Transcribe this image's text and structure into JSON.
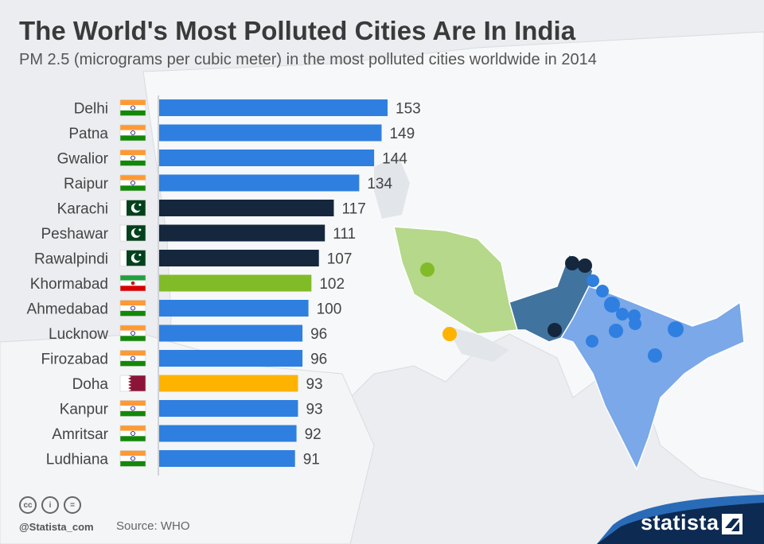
{
  "title": "The World's Most Polluted Cities Are In India",
  "subtitle": "PM 2.5 (micrograms per cubic meter) in the most polluted cities worldwide in 2014",
  "source": "Source: WHO",
  "handle": "@Statista_com",
  "brand": "statista",
  "license_icons": [
    "cc-icon",
    "attribution-icon",
    "no-derivatives-icon"
  ],
  "license_icon_glyphs": [
    "cc",
    "i",
    "="
  ],
  "colors": {
    "india": "#2f7fe0",
    "pakistan": "#14273d",
    "iran": "#82bb28",
    "qatar": "#fdb300",
    "map_india": "#7aa8e8",
    "map_pakistan": "#41739f",
    "map_iran": "#b5d88a",
    "brand_dark": "#0c2a52",
    "brand_blue": "#2a6bb8"
  },
  "chart_data": {
    "type": "bar",
    "orientation": "horizontal",
    "categories": [
      "Delhi",
      "Patna",
      "Gwalior",
      "Raipur",
      "Karachi",
      "Peshawar",
      "Rawalpindi",
      "Khormabad",
      "Ahmedabad",
      "Lucknow",
      "Firozabad",
      "Doha",
      "Kanpur",
      "Amritsar",
      "Ludhiana"
    ],
    "values": [
      153,
      149,
      144,
      134,
      117,
      111,
      107,
      102,
      100,
      96,
      96,
      93,
      93,
      92,
      91
    ],
    "countries": [
      "india",
      "india",
      "india",
      "india",
      "pakistan",
      "pakistan",
      "pakistan",
      "iran",
      "india",
      "india",
      "india",
      "qatar",
      "india",
      "india",
      "india"
    ],
    "xlim": [
      0,
      160
    ],
    "grid": false,
    "legend": "none"
  }
}
